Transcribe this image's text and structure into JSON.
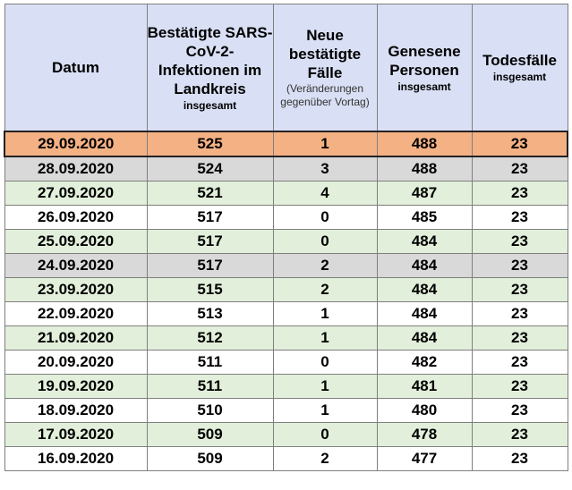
{
  "headers": {
    "datum": {
      "main": "Datum"
    },
    "bestaetigte": {
      "main": "Bestätigte SARS-CoV-2-Infektionen im Landkreis",
      "sub": "insgesamt"
    },
    "neue": {
      "main": "Neue bestätigte Fälle",
      "note": "(Veränderungen gegenüber Vortag)"
    },
    "genesene": {
      "main": "Genesene Personen",
      "sub": "insgesamt"
    },
    "todesfaelle": {
      "main": "Todesfälle",
      "sub": "insgesamt"
    }
  },
  "rows": [
    {
      "date": "29.09.2020",
      "confirmed": "525",
      "new": "1",
      "recovered": "488",
      "deaths": "23",
      "style": "highlight"
    },
    {
      "date": "28.09.2020",
      "confirmed": "524",
      "new": "3",
      "recovered": "488",
      "deaths": "23",
      "style": "grey"
    },
    {
      "date": "27.09.2020",
      "confirmed": "521",
      "new": "4",
      "recovered": "487",
      "deaths": "23",
      "style": "green"
    },
    {
      "date": "26.09.2020",
      "confirmed": "517",
      "new": "0",
      "recovered": "485",
      "deaths": "23",
      "style": "white"
    },
    {
      "date": "25.09.2020",
      "confirmed": "517",
      "new": "0",
      "recovered": "484",
      "deaths": "23",
      "style": "green"
    },
    {
      "date": "24.09.2020",
      "confirmed": "517",
      "new": "2",
      "recovered": "484",
      "deaths": "23",
      "style": "grey"
    },
    {
      "date": "23.09.2020",
      "confirmed": "515",
      "new": "2",
      "recovered": "484",
      "deaths": "23",
      "style": "green"
    },
    {
      "date": "22.09.2020",
      "confirmed": "513",
      "new": "1",
      "recovered": "484",
      "deaths": "23",
      "style": "white"
    },
    {
      "date": "21.09.2020",
      "confirmed": "512",
      "new": "1",
      "recovered": "484",
      "deaths": "23",
      "style": "green"
    },
    {
      "date": "20.09.2020",
      "confirmed": "511",
      "new": "0",
      "recovered": "482",
      "deaths": "23",
      "style": "white"
    },
    {
      "date": "19.09.2020",
      "confirmed": "511",
      "new": "1",
      "recovered": "481",
      "deaths": "23",
      "style": "green"
    },
    {
      "date": "18.09.2020",
      "confirmed": "510",
      "new": "1",
      "recovered": "480",
      "deaths": "23",
      "style": "white"
    },
    {
      "date": "17.09.2020",
      "confirmed": "509",
      "new": "0",
      "recovered": "478",
      "deaths": "23",
      "style": "green"
    },
    {
      "date": "16.09.2020",
      "confirmed": "509",
      "new": "2",
      "recovered": "477",
      "deaths": "23",
      "style": "white"
    }
  ],
  "colors": {
    "header_bg": "#d9dff4",
    "highlight_bg": "#f4b183",
    "grey_bg": "#d9d9d9",
    "green_bg": "#e2efda",
    "white_bg": "#ffffff"
  }
}
